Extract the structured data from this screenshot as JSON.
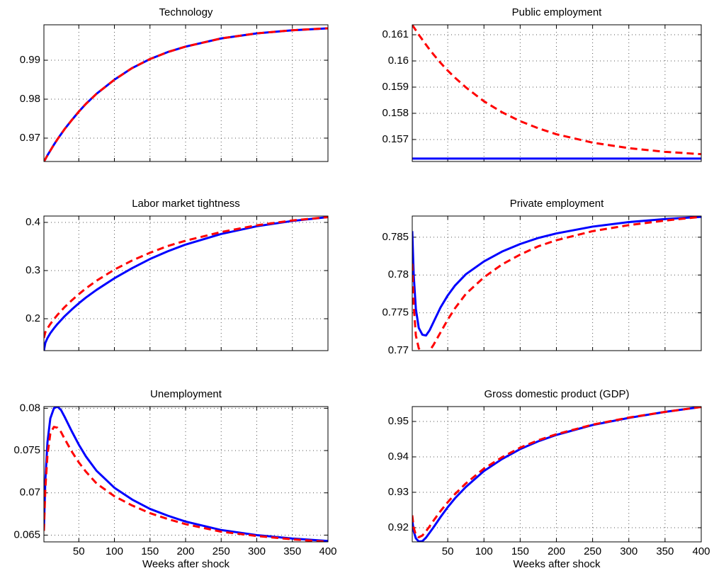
{
  "chart_data": [
    {
      "type": "line",
      "title": "Technology",
      "x": [
        1,
        3,
        6,
        10,
        15,
        20,
        25,
        30,
        40,
        50,
        60,
        75,
        100,
        125,
        150,
        175,
        200,
        250,
        300,
        350,
        400
      ],
      "xlim": [
        1,
        400
      ],
      "xticks": [
        50,
        100,
        150,
        200,
        250,
        300,
        350,
        400
      ],
      "ylim": [
        0.964,
        0.9991
      ],
      "yticks": [
        0.97,
        0.98,
        0.99
      ],
      "grid": true,
      "series": [
        {
          "color": "#0000ff",
          "linestyle": "solid",
          "values": [
            0.964,
            0.9646,
            0.9656,
            0.9668,
            0.9683,
            0.9697,
            0.971,
            0.9723,
            0.9746,
            0.9768,
            0.9788,
            0.9814,
            0.985,
            0.988,
            0.9903,
            0.9921,
            0.9935,
            0.9956,
            0.9969,
            0.9977,
            0.9982
          ]
        },
        {
          "color": "#ff0000",
          "linestyle": "dashed",
          "values": [
            0.964,
            0.9646,
            0.9656,
            0.9668,
            0.9683,
            0.9697,
            0.971,
            0.9723,
            0.9746,
            0.9768,
            0.9788,
            0.9814,
            0.985,
            0.988,
            0.9903,
            0.9921,
            0.9935,
            0.9956,
            0.9969,
            0.9977,
            0.9982
          ]
        }
      ]
    },
    {
      "type": "line",
      "title": "Public employment",
      "x": [
        1,
        3,
        6,
        10,
        15,
        20,
        25,
        30,
        40,
        50,
        60,
        75,
        100,
        125,
        150,
        175,
        200,
        250,
        300,
        350,
        400
      ],
      "xlim": [
        1,
        400
      ],
      "xticks": [
        50,
        100,
        150,
        200,
        250,
        300,
        350,
        400
      ],
      "ylim": [
        0.15616,
        0.16138
      ],
      "yticks": [
        0.157,
        0.158,
        0.159,
        0.16,
        0.161
      ],
      "grid": true,
      "series": [
        {
          "color": "#0000ff",
          "linestyle": "solid",
          "values": [
            0.15627,
            0.15627,
            0.15627,
            0.15627,
            0.15627,
            0.15627,
            0.15627,
            0.15627,
            0.15627,
            0.15627,
            0.15627,
            0.15627,
            0.15627,
            0.15627,
            0.15627,
            0.15627,
            0.15627,
            0.15627,
            0.15627,
            0.15627,
            0.15627
          ]
        },
        {
          "color": "#ff0000",
          "linestyle": "dashed",
          "values": [
            0.16138,
            0.16129,
            0.16117,
            0.161,
            0.16081,
            0.16062,
            0.16043,
            0.16026,
            0.15993,
            0.15963,
            0.15936,
            0.15899,
            0.15846,
            0.15804,
            0.1577,
            0.15743,
            0.1572,
            0.15688,
            0.15667,
            0.15653,
            0.15644
          ]
        }
      ]
    },
    {
      "type": "line",
      "title": "Labor market tightness",
      "x": [
        1,
        3,
        6,
        10,
        15,
        20,
        25,
        30,
        40,
        50,
        60,
        75,
        100,
        125,
        150,
        175,
        200,
        250,
        300,
        350,
        400
      ],
      "xlim": [
        1,
        400
      ],
      "xticks": [
        50,
        100,
        150,
        200,
        250,
        300,
        350,
        400
      ],
      "ylim": [
        0.1338,
        0.4132
      ],
      "yticks": [
        0.2,
        0.3,
        0.4
      ],
      "grid": true,
      "series": [
        {
          "color": "#0000ff",
          "linestyle": "solid",
          "values": [
            0.134,
            0.15,
            0.16,
            0.17,
            0.18,
            0.189,
            0.197,
            0.205,
            0.219,
            0.232,
            0.244,
            0.26,
            0.284,
            0.305,
            0.324,
            0.34,
            0.354,
            0.376,
            0.392,
            0.403,
            0.411
          ]
        },
        {
          "color": "#ff0000",
          "linestyle": "dashed",
          "values": [
            0.16,
            0.172,
            0.18,
            0.189,
            0.199,
            0.208,
            0.216,
            0.224,
            0.238,
            0.251,
            0.263,
            0.279,
            0.302,
            0.321,
            0.337,
            0.351,
            0.362,
            0.38,
            0.394,
            0.404,
            0.411
          ]
        }
      ]
    },
    {
      "type": "line",
      "title": "Private employment",
      "x": [
        1,
        3,
        6,
        10,
        15,
        20,
        25,
        30,
        40,
        50,
        60,
        75,
        100,
        125,
        150,
        175,
        200,
        250,
        300,
        350,
        400
      ],
      "xlim": [
        1,
        400
      ],
      "xticks": [
        50,
        100,
        150,
        200,
        250,
        300,
        350,
        400
      ],
      "ylim": [
        0.77,
        0.7878
      ],
      "yticks": [
        0.77,
        0.775,
        0.78,
        0.785
      ],
      "grid": true,
      "series": [
        {
          "color": "#0000ff",
          "linestyle": "solid",
          "values": [
            0.7858,
            0.78,
            0.7755,
            0.773,
            0.7721,
            0.772,
            0.7727,
            0.7737,
            0.7757,
            0.7773,
            0.7786,
            0.7801,
            0.7818,
            0.7831,
            0.7841,
            0.7849,
            0.7855,
            0.7864,
            0.787,
            0.7874,
            0.7877
          ]
        },
        {
          "color": "#ff0000",
          "linestyle": "dashed",
          "values": [
            0.7815,
            0.776,
            0.772,
            0.7703,
            0.7697,
            0.7697,
            0.77,
            0.7707,
            0.7724,
            0.7741,
            0.7756,
            0.7775,
            0.7797,
            0.7814,
            0.7827,
            0.7838,
            0.7846,
            0.7858,
            0.7866,
            0.7872,
            0.7877
          ]
        }
      ]
    },
    {
      "type": "line",
      "title": "Unemployment",
      "xlabel": "Weeks after shock",
      "x": [
        1,
        3,
        6,
        10,
        15,
        20,
        25,
        30,
        40,
        50,
        60,
        75,
        100,
        125,
        150,
        175,
        200,
        250,
        300,
        350,
        400
      ],
      "xlim": [
        1,
        400
      ],
      "xticks": [
        50,
        100,
        150,
        200,
        250,
        300,
        350,
        400
      ],
      "ylim": [
        0.0642,
        0.0802
      ],
      "yticks": [
        0.065,
        0.07,
        0.075,
        0.08
      ],
      "grid": true,
      "series": [
        {
          "color": "#0000ff",
          "linestyle": "solid",
          "values": [
            0.0658,
            0.0715,
            0.076,
            0.0788,
            0.08,
            0.0802,
            0.0798,
            0.079,
            0.0773,
            0.0757,
            0.0743,
            0.0726,
            0.0706,
            0.0692,
            0.0681,
            0.0673,
            0.0666,
            0.0656,
            0.065,
            0.0646,
            0.0643
          ]
        },
        {
          "color": "#ff0000",
          "linestyle": "dashed",
          "values": [
            0.0655,
            0.0705,
            0.0745,
            0.077,
            0.0778,
            0.0777,
            0.0772,
            0.0764,
            0.0749,
            0.0736,
            0.0725,
            0.0711,
            0.0696,
            0.0685,
            0.0676,
            0.0669,
            0.0663,
            0.0654,
            0.0649,
            0.0645,
            0.0642
          ]
        }
      ]
    },
    {
      "type": "line",
      "title": "Gross domestic product (GDP)",
      "xlabel": "Weeks after shock",
      "x": [
        1,
        3,
        6,
        10,
        15,
        20,
        25,
        30,
        40,
        50,
        60,
        75,
        100,
        125,
        150,
        175,
        200,
        250,
        300,
        350,
        400
      ],
      "xlim": [
        1,
        400
      ],
      "xticks": [
        50,
        100,
        150,
        200,
        250,
        300,
        350,
        400
      ],
      "ylim": [
        0.916,
        0.9542
      ],
      "yticks": [
        0.92,
        0.93,
        0.94,
        0.95
      ],
      "grid": true,
      "series": [
        {
          "color": "#0000ff",
          "linestyle": "solid",
          "values": [
            0.9222,
            0.919,
            0.917,
            0.9161,
            0.9162,
            0.9172,
            0.9186,
            0.92,
            0.923,
            0.9258,
            0.9283,
            0.9315,
            0.936,
            0.9394,
            0.9422,
            0.9444,
            0.9462,
            0.949,
            0.951,
            0.9527,
            0.9541
          ]
        },
        {
          "color": "#ff0000",
          "linestyle": "dashed",
          "values": [
            0.9235,
            0.92,
            0.918,
            0.9173,
            0.9178,
            0.919,
            0.9204,
            0.9219,
            0.9247,
            0.9272,
            0.9295,
            0.9325,
            0.9367,
            0.9399,
            0.9426,
            0.9447,
            0.9464,
            0.9491,
            0.9511,
            0.9527,
            0.9541
          ]
        }
      ]
    }
  ]
}
